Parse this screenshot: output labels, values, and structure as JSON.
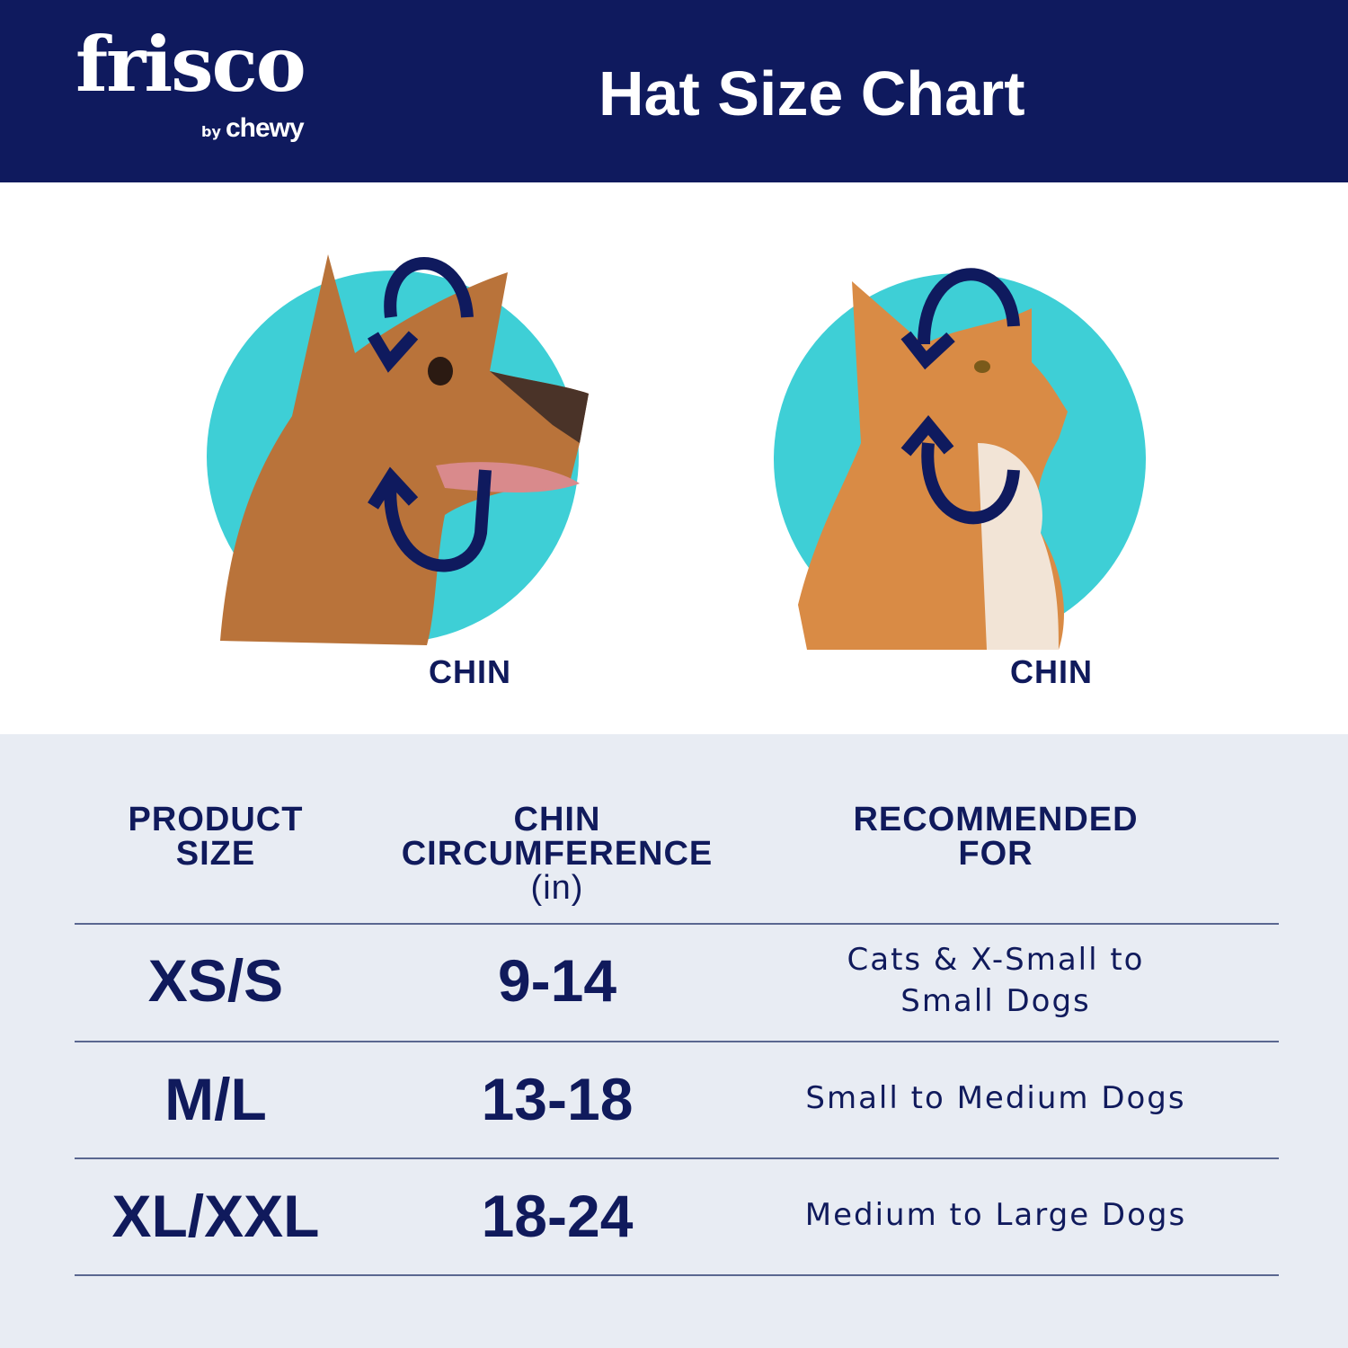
{
  "header": {
    "logo_main": "frisco",
    "logo_by": "by",
    "logo_brand": "chewy",
    "title": "Hat Size Chart"
  },
  "illustrations": {
    "dog_label": "CHIN",
    "cat_label": "CHIN"
  },
  "colors": {
    "navy": "#0f1a5e",
    "teal": "#3ecfd6",
    "table_bg": "#e8ecf3"
  },
  "table": {
    "headers": [
      {
        "line1": "PRODUCT",
        "line2": "SIZE",
        "unit": ""
      },
      {
        "line1": "CHIN",
        "line2": "CIRCUMFERENCE",
        "unit": "(in)"
      },
      {
        "line1": "RECOMMENDED",
        "line2": "FOR",
        "unit": ""
      }
    ],
    "rows": [
      {
        "size": "XS/S",
        "chin": "9-14",
        "recommended_line1": "Cats & X-Small to",
        "recommended_line2": "Small Dogs"
      },
      {
        "size": "M/L",
        "chin": "13-18",
        "recommended_line1": "Small to Medium Dogs",
        "recommended_line2": ""
      },
      {
        "size": "XL/XXL",
        "chin": "18-24",
        "recommended_line1": "Medium to Large Dogs",
        "recommended_line2": ""
      }
    ]
  }
}
